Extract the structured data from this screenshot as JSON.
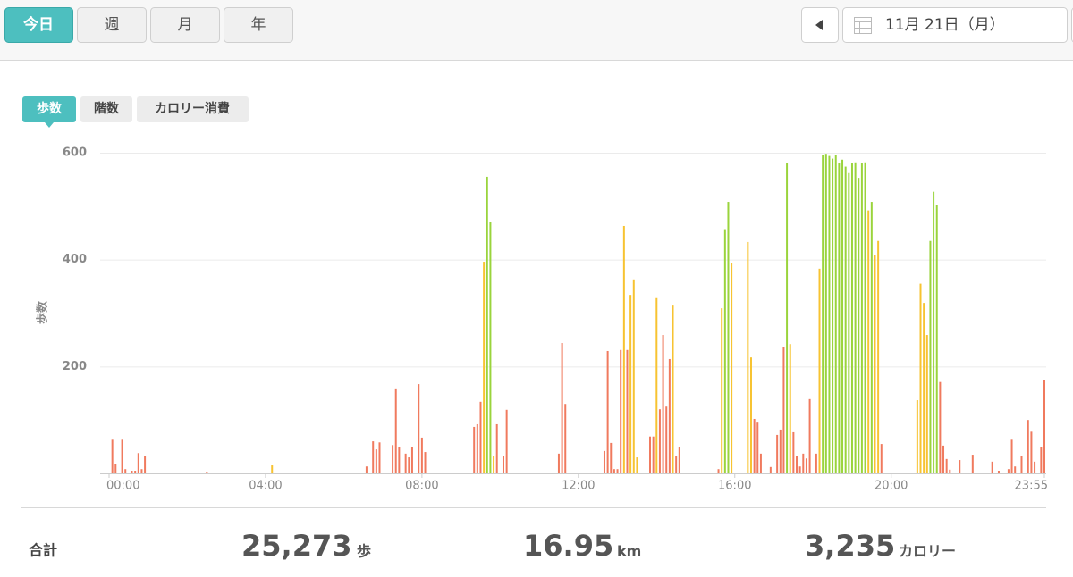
{
  "header": {
    "period_tabs": [
      "今日",
      "週",
      "月",
      "年"
    ],
    "date": "11月 21日（月）"
  },
  "metric_tabs": [
    "歩数",
    "階数",
    "カロリー消費"
  ],
  "chart_data": {
    "type": "bar",
    "ylabel": "歩数",
    "xlim": [
      0,
      1435
    ],
    "ylim": [
      0,
      600
    ],
    "yticks": [
      200,
      400,
      600
    ],
    "grid": true,
    "xticks": [
      {
        "value": 0,
        "label": "00:00"
      },
      {
        "value": 240,
        "label": "04:00"
      },
      {
        "value": 480,
        "label": "08:00"
      },
      {
        "value": 720,
        "label": "12:00"
      },
      {
        "value": 960,
        "label": "16:00"
      },
      {
        "value": 1200,
        "label": "20:00"
      },
      {
        "value": 1435,
        "label": "23:55"
      }
    ],
    "series": [
      {
        "color": "#f07a5e",
        "x": [
          5,
          10,
          20,
          25,
          35,
          40,
          45,
          50,
          55,
          150,
          395,
          405,
          410,
          415,
          435,
          440,
          445,
          455,
          460,
          465,
          475,
          480,
          485,
          560,
          565,
          570,
          595,
          605,
          610,
          690,
          695,
          700,
          760,
          765,
          770,
          775,
          780,
          785,
          795,
          830,
          835,
          845,
          850,
          855,
          860,
          870,
          875,
          935,
          990,
          995,
          1000,
          1015,
          1025,
          1030,
          1035,
          1050,
          1055,
          1060,
          1065,
          1070,
          1075,
          1085,
          1185,
          1275,
          1280,
          1285,
          1290,
          1305,
          1325,
          1355,
          1365,
          1380,
          1385,
          1390,
          1400,
          1410,
          1415,
          1420,
          1430,
          1435
        ],
        "values": [
          63,
          17,
          63,
          8,
          5,
          5,
          38,
          8,
          33,
          3,
          13,
          60,
          45,
          58,
          53,
          159,
          50,
          37,
          30,
          50,
          167,
          67,
          40,
          87,
          92,
          134,
          92,
          33,
          119,
          37,
          244,
          130,
          42,
          229,
          57,
          8,
          8,
          231,
          231,
          69,
          69,
          120,
          259,
          125,
          214,
          33,
          50,
          8,
          102,
          95,
          37,
          12,
          72,
          82,
          237,
          77,
          33,
          13,
          37,
          28,
          139,
          37,
          55,
          171,
          52,
          27,
          7,
          25,
          35,
          22,
          5,
          8,
          63,
          13,
          32,
          100,
          78,
          22,
          50,
          174
        ]
      },
      {
        "color": "#f7c331",
        "x": [
          250,
          575,
          590,
          790,
          800,
          805,
          810,
          840,
          865,
          940,
          955,
          980,
          985,
          1045,
          1090,
          1165,
          1175,
          1180,
          1240,
          1245,
          1250,
          1255
        ],
        "values": [
          15,
          396,
          33,
          463,
          334,
          363,
          30,
          328,
          314,
          309,
          393,
          433,
          217,
          242,
          383,
          492,
          408,
          435,
          137,
          355,
          319,
          259
        ]
      },
      {
        "color": "#9ad43c",
        "x": [
          580,
          585,
          945,
          950,
          1040,
          1095,
          1100,
          1105,
          1110,
          1115,
          1120,
          1125,
          1130,
          1135,
          1140,
          1145,
          1150,
          1155,
          1160,
          1170,
          1260,
          1265,
          1270
        ],
        "values": [
          555,
          470,
          457,
          508,
          580,
          595,
          598,
          594,
          589,
          595,
          580,
          587,
          574,
          562,
          580,
          582,
          553,
          580,
          582,
          508,
          435,
          527,
          503
        ]
      }
    ]
  },
  "summary": {
    "label": "合計",
    "items": [
      {
        "value": "25,273",
        "unit": "歩"
      },
      {
        "value": "16.95",
        "unit": "km"
      },
      {
        "value": "3,235",
        "unit": "カロリー"
      }
    ]
  }
}
